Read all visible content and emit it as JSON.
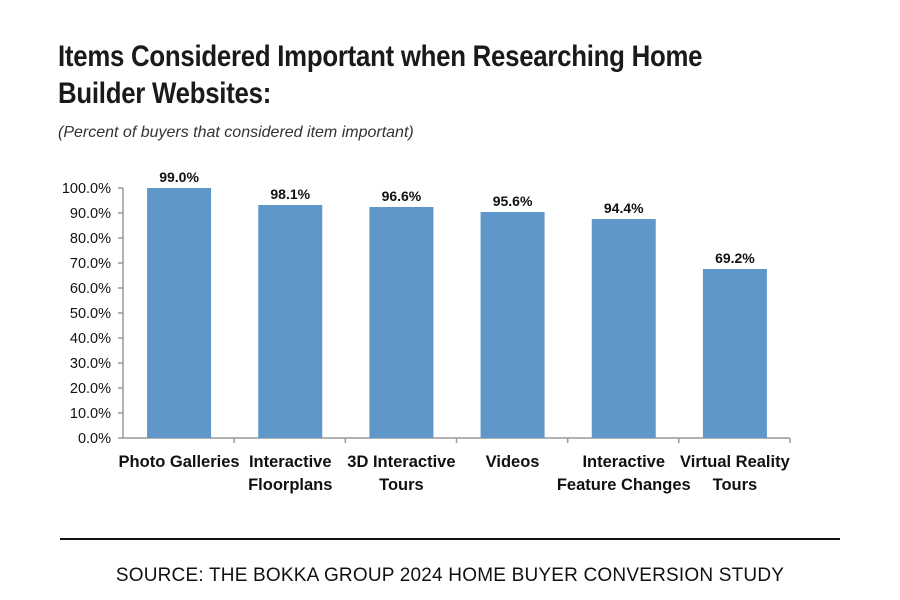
{
  "chart_data": {
    "type": "bar",
    "title": "Items Considered Important when Researching Home Builder Websites:",
    "subtitle": "(Percent of buyers that considered item important)",
    "categories": [
      [
        "Photo Galleries"
      ],
      [
        "Interactive",
        "Floorplans"
      ],
      [
        "3D Interactive",
        "Tours"
      ],
      [
        "Videos"
      ],
      [
        "Interactive",
        "Feature Changes"
      ],
      [
        "Virtual Reality",
        "Tours"
      ]
    ],
    "values": [
      99.0,
      98.1,
      96.6,
      95.6,
      94.4,
      69.2
    ],
    "data_labels": [
      "99.0%",
      "98.1%",
      "96.6%",
      "95.6%",
      "94.4%",
      "69.2%"
    ],
    "bar_heights_as_drawn": [
      100.0,
      93.2,
      92.4,
      90.4,
      87.6,
      67.6
    ],
    "ylim": [
      0,
      100
    ],
    "yticks": [
      "0.0%",
      "10.0%",
      "20.0%",
      "30.0%",
      "40.0%",
      "50.0%",
      "60.0%",
      "70.0%",
      "80.0%",
      "90.0%",
      "100.0%"
    ],
    "xlabel": "",
    "ylabel": "",
    "grid": false,
    "bar_color": "#6097cb"
  },
  "source": "SOURCE: THE BOKKA GROUP 2024 HOME BUYER CONVERSION STUDY"
}
